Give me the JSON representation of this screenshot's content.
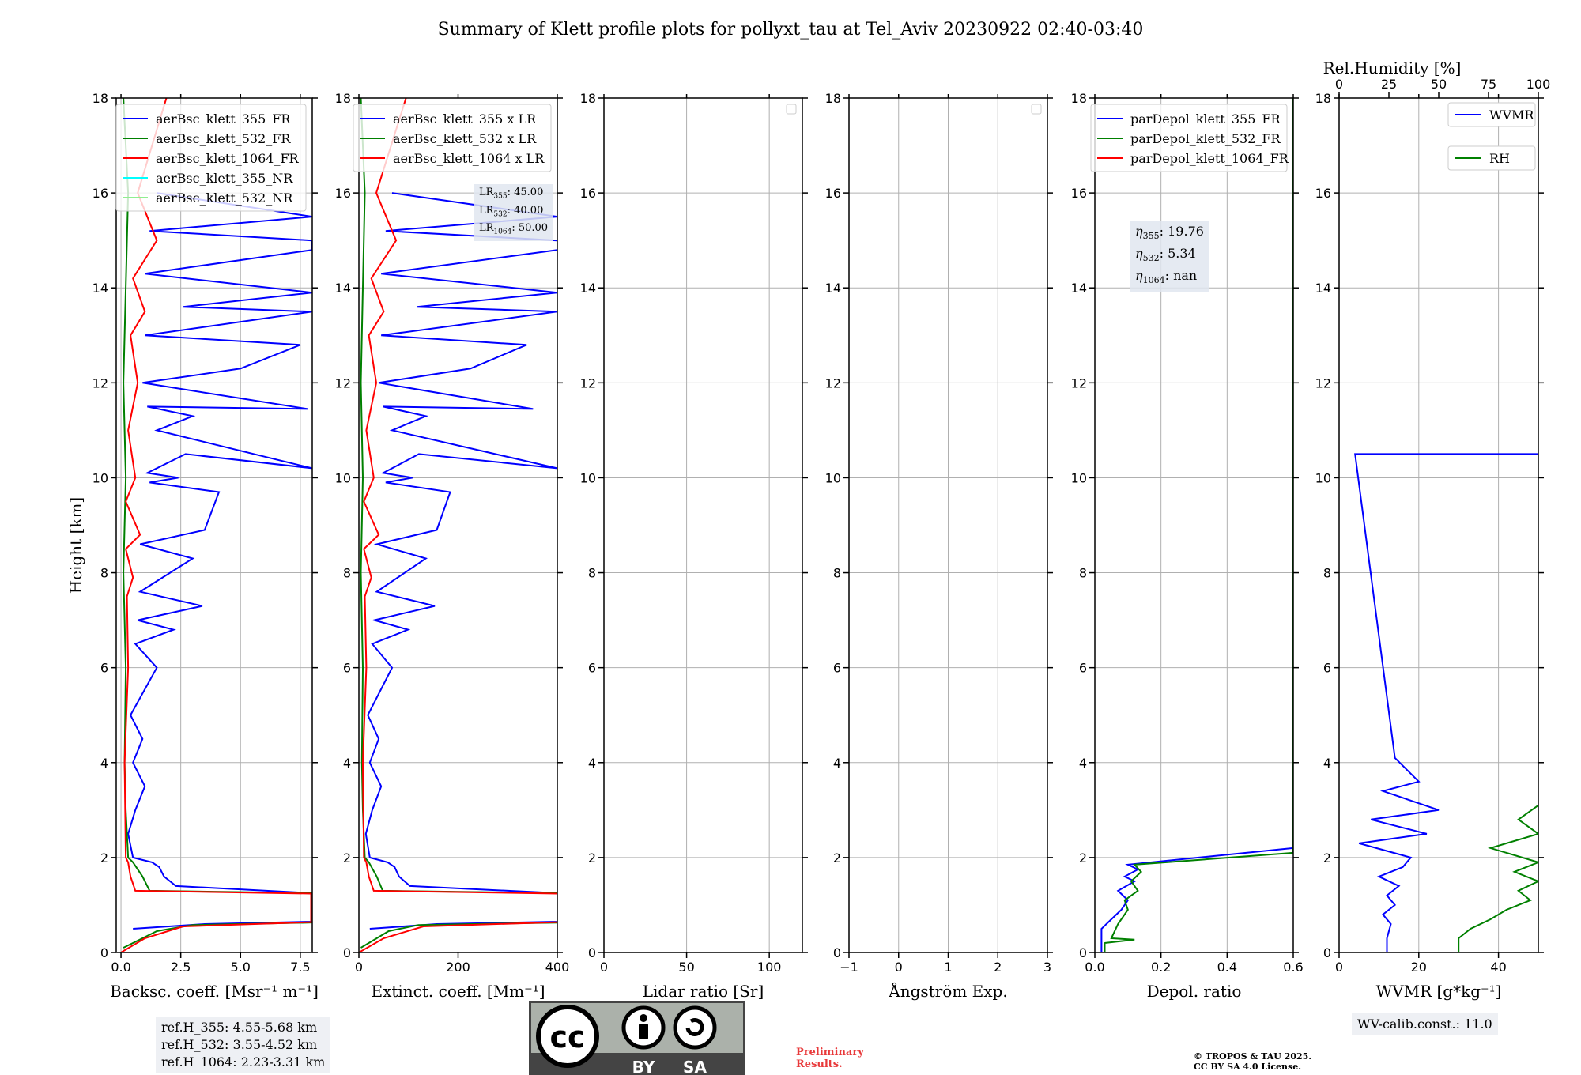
{
  "title": "Summary of Klett profile plots for pollyxt_tau at Tel_Aviv 20230922 02:40-03:40",
  "colors": {
    "c355": "#0000ff",
    "c532": "#008000",
    "c1064": "#ff0000",
    "c355nr": "#00ffff",
    "c532nr": "#90ee90"
  },
  "chart_data": [
    {
      "type": "line",
      "panel": "backscatter",
      "xlabel": "Backsc. coeff. [Msr⁻¹ m⁻¹]",
      "ylabel": "Height [km]",
      "xlim": [
        -0.2,
        8
      ],
      "ylim": [
        0,
        18
      ],
      "xticks": [
        0,
        2.5,
        5,
        7.5
      ],
      "xtick_labels": [
        "0.0",
        "2.5",
        "5.0",
        "7.5"
      ],
      "yticks": [
        0,
        2,
        4,
        6,
        8,
        10,
        12,
        14,
        16,
        18
      ],
      "legend_placement": "top-right",
      "series": [
        {
          "name": "aerBsc_klett_355_FR",
          "color": "#0000ff",
          "x": [
            0.5,
            3.5,
            7.95,
            7.95,
            7.95,
            2.3,
            1.8,
            1.6,
            1.3,
            0.5,
            0.3,
            0.6,
            1.0,
            0.5,
            0.9,
            0.4,
            1.5,
            0.6,
            2.2,
            0.7,
            3.4,
            0.8,
            3.0,
            0.8,
            3.5,
            4.1,
            1.2,
            2.4,
            1.1,
            2.7,
            8.0,
            1.5,
            3.0,
            1.1,
            7.8,
            0.9,
            5.0,
            7.5,
            1.0,
            8.0,
            2.6,
            8.0,
            1.0,
            8.0,
            8.0,
            1.2,
            8.0,
            1.5
          ],
          "y": [
            0.5,
            0.6,
            0.65,
            1.2,
            1.25,
            1.4,
            1.6,
            1.8,
            1.9,
            2.0,
            2.5,
            3.0,
            3.5,
            4.0,
            4.5,
            5.0,
            6.0,
            6.5,
            6.8,
            7.0,
            7.3,
            7.6,
            8.3,
            8.6,
            8.9,
            9.7,
            9.9,
            10.0,
            10.1,
            10.5,
            10.2,
            11.0,
            11.3,
            11.5,
            11.45,
            12.0,
            12.3,
            12.8,
            13.0,
            13.5,
            13.6,
            13.9,
            14.3,
            14.8,
            15.0,
            15.2,
            15.5,
            16.0
          ]
        },
        {
          "name": "aerBsc_klett_532_FR",
          "color": "#008000",
          "x": [
            0.1,
            1.5,
            3.0,
            7.95,
            7.95,
            7.95,
            1.2,
            0.9,
            0.5,
            0.3,
            0.2,
            0.15,
            0.2,
            0.1,
            0.2,
            0.1,
            0.2,
            0.3,
            0.1
          ],
          "y": [
            0.1,
            0.45,
            0.58,
            0.63,
            1.22,
            1.25,
            1.3,
            1.6,
            1.9,
            2.0,
            3.0,
            4.0,
            6.0,
            8.0,
            10.0,
            12.0,
            14.0,
            16.0,
            18.0
          ]
        },
        {
          "name": "aerBsc_klett_1064_FR",
          "color": "#ff0000",
          "x": [
            0.0,
            1.0,
            2.6,
            7.95,
            7.95,
            7.95,
            0.6,
            0.4,
            0.3,
            0.2,
            0.15,
            0.3,
            0.25,
            0.5,
            0.2,
            0.8,
            0.2,
            0.6,
            0.3,
            0.7,
            0.4,
            1.0,
            0.5,
            1.5,
            0.7,
            1.9
          ],
          "y": [
            0.0,
            0.3,
            0.55,
            0.64,
            1.22,
            1.24,
            1.3,
            1.6,
            1.9,
            2.0,
            4.0,
            6.0,
            7.5,
            7.9,
            8.5,
            8.8,
            9.5,
            10.0,
            11.0,
            12.0,
            13.0,
            13.5,
            14.2,
            15.0,
            16.0,
            18.0
          ]
        },
        {
          "name": "aerBsc_klett_355_NR",
          "color": "#00ffff",
          "x": [],
          "y": []
        },
        {
          "name": "aerBsc_klett_532_NR",
          "color": "#90ee90",
          "x": [],
          "y": []
        }
      ]
    },
    {
      "type": "line",
      "panel": "extinction",
      "xlabel": "Extinct. coeff. [Mm⁻¹]",
      "xlim": [
        0,
        400
      ],
      "ylim": [
        0,
        18
      ],
      "xticks": [
        0,
        200,
        400
      ],
      "xtick_labels": [
        "0",
        "200",
        "400"
      ],
      "yticks": [
        0,
        2,
        4,
        6,
        8,
        10,
        12,
        14,
        16,
        18
      ],
      "legend_placement": "top-right",
      "annotation": {
        "LR355": "45.00",
        "LR532": "40.00",
        "LR1064": "50.00"
      },
      "series": [
        {
          "name": "aerBsc_klett_355 x LR",
          "color": "#0000ff",
          "x": [
            22,
            157,
            400,
            400,
            400,
            103,
            81,
            72,
            58,
            22,
            14,
            27,
            45,
            22,
            40,
            18,
            67,
            27,
            99,
            31,
            153,
            36,
            135,
            36,
            157,
            184,
            54,
            108,
            49,
            121,
            400,
            67,
            135,
            49,
            351,
            40,
            225,
            338,
            45,
            400,
            117,
            400,
            45,
            400,
            400,
            54,
            400,
            67
          ],
          "y": [
            0.5,
            0.6,
            0.65,
            1.2,
            1.25,
            1.4,
            1.6,
            1.8,
            1.9,
            2.0,
            2.5,
            3.0,
            3.5,
            4.0,
            4.5,
            5.0,
            6.0,
            6.5,
            6.8,
            7.0,
            7.3,
            7.6,
            8.3,
            8.6,
            8.9,
            9.7,
            9.9,
            10.0,
            10.1,
            10.5,
            10.2,
            11.0,
            11.3,
            11.5,
            11.45,
            12.0,
            12.3,
            12.8,
            13.0,
            13.5,
            13.6,
            13.9,
            14.3,
            14.8,
            15.0,
            15.2,
            15.5,
            16.0
          ]
        },
        {
          "name": "aerBsc_klett_532 x LR",
          "color": "#008000",
          "x": [
            4,
            60,
            120,
            400,
            400,
            400,
            48,
            36,
            20,
            12,
            8,
            6,
            8,
            4,
            8,
            4,
            8,
            12,
            4
          ],
          "y": [
            0.1,
            0.45,
            0.58,
            0.63,
            1.22,
            1.25,
            1.3,
            1.6,
            1.9,
            2.0,
            3.0,
            4.0,
            6.0,
            8.0,
            10.0,
            12.0,
            14.0,
            16.0,
            18.0
          ]
        },
        {
          "name": "aerBsc_klett_1064 x LR",
          "color": "#ff0000",
          "x": [
            0,
            50,
            130,
            400,
            400,
            400,
            30,
            20,
            15,
            10,
            8,
            15,
            12,
            25,
            10,
            40,
            10,
            30,
            15,
            35,
            20,
            50,
            25,
            75,
            35,
            95
          ],
          "y": [
            0.0,
            0.3,
            0.55,
            0.64,
            1.22,
            1.24,
            1.3,
            1.6,
            1.9,
            2.0,
            4.0,
            6.0,
            7.5,
            7.9,
            8.5,
            8.8,
            9.5,
            10.0,
            11.0,
            12.0,
            13.0,
            13.5,
            14.2,
            15.0,
            16.0,
            18.0
          ]
        }
      ]
    },
    {
      "type": "line",
      "panel": "lidar-ratio",
      "xlabel": "Lidar ratio [Sr]",
      "xlim": [
        0,
        120
      ],
      "ylim": [
        0,
        18
      ],
      "xticks": [
        0,
        50,
        100
      ],
      "xtick_labels": [
        "0",
        "50",
        "100"
      ],
      "yticks": [
        0,
        2,
        4,
        6,
        8,
        10,
        12,
        14,
        16,
        18
      ],
      "legend_placement": "top-right",
      "series": []
    },
    {
      "type": "line",
      "panel": "angstrom",
      "xlabel": "Ångström Exp.",
      "xlim": [
        -1,
        3
      ],
      "ylim": [
        0,
        18
      ],
      "xticks": [
        -1,
        0,
        1,
        2,
        3
      ],
      "xtick_labels": [
        "−1",
        "0",
        "1",
        "2",
        "3"
      ],
      "yticks": [
        0,
        2,
        4,
        6,
        8,
        10,
        12,
        14,
        16,
        18
      ],
      "legend_placement": "top-right",
      "series": []
    },
    {
      "type": "line",
      "panel": "depol",
      "xlabel": "Depol. ratio",
      "xlim": [
        0,
        0.6
      ],
      "ylim": [
        0,
        18
      ],
      "xticks": [
        0,
        0.2,
        0.4,
        0.6
      ],
      "xtick_labels": [
        "0.0",
        "0.2",
        "0.4",
        "0.6"
      ],
      "yticks": [
        0,
        2,
        4,
        6,
        8,
        10,
        12,
        14,
        16,
        18
      ],
      "legend_placement": "top-right",
      "annotation": {
        "eta355": "19.76",
        "eta532": "5.34",
        "eta1064": "nan"
      },
      "series": [
        {
          "name": "parDepol_klett_355_FR",
          "color": "#0000ff",
          "x": [
            0.02,
            0.02,
            0.05,
            0.08,
            0.1,
            0.07,
            0.12,
            0.09,
            0.13,
            0.1,
            0.6,
            0.6
          ],
          "y": [
            0.0,
            0.5,
            0.7,
            0.9,
            1.1,
            1.3,
            1.5,
            1.6,
            1.75,
            1.85,
            2.2,
            18.0
          ]
        },
        {
          "name": "parDepol_klett_532_FR",
          "color": "#008000",
          "x": [
            0.03,
            0.03,
            0.12,
            0.05,
            0.07,
            0.1,
            0.09,
            0.13,
            0.11,
            0.14,
            0.12,
            0.6,
            0.6
          ],
          "y": [
            0.0,
            0.2,
            0.27,
            0.3,
            0.6,
            0.9,
            1.1,
            1.3,
            1.5,
            1.7,
            1.85,
            2.1,
            18.0
          ]
        },
        {
          "name": "parDepol_klett_1064_FR",
          "color": "#ff0000",
          "x": [],
          "y": []
        }
      ]
    },
    {
      "type": "line",
      "panel": "wvmr",
      "xlabel": "WVMR [g*kg⁻¹]",
      "xlim": [
        0,
        50
      ],
      "ylim": [
        0,
        18
      ],
      "xticks": [
        0,
        20,
        40
      ],
      "xtick_labels": [
        "0",
        "20",
        "40"
      ],
      "yticks": [
        0,
        2,
        4,
        6,
        8,
        10,
        12,
        14,
        16,
        18
      ],
      "x2label": "Rel.Humidity [%]",
      "x2lim": [
        0,
        100
      ],
      "x2ticks": [
        0,
        25,
        50,
        75,
        100
      ],
      "x2tick_labels": [
        "0",
        "25",
        "50",
        "75",
        "100"
      ],
      "legend_placement": "top-right",
      "series": [
        {
          "name": "WVMR",
          "color": "#0000ff",
          "x": [
            12,
            12,
            13,
            11,
            14,
            12,
            15,
            10,
            16,
            18,
            5,
            22,
            8,
            25,
            11,
            20,
            14,
            4,
            50
          ],
          "y": [
            0.0,
            0.3,
            0.6,
            0.8,
            1.0,
            1.2,
            1.4,
            1.6,
            1.8,
            2.0,
            2.3,
            2.5,
            2.8,
            3.0,
            3.4,
            3.6,
            4.1,
            10.5,
            10.5
          ]
        },
        {
          "name": "RH",
          "color": "#008000",
          "x": [
            30,
            30,
            33,
            38,
            42,
            48,
            45,
            50,
            44,
            50,
            38,
            50,
            45,
            50,
            50
          ],
          "y": [
            0.0,
            0.3,
            0.5,
            0.7,
            0.9,
            1.1,
            1.3,
            1.5,
            1.7,
            1.9,
            2.2,
            2.5,
            2.8,
            3.1,
            3.4
          ]
        }
      ]
    }
  ],
  "labels": {
    "eta355": "η",
    "lr": "LR"
  },
  "refbox": [
    "ref.H_355: 4.55-5.68 km",
    "ref.H_532: 3.55-4.52 km",
    "ref.H_1064: 2.23-3.31 km"
  ],
  "wvcalib": "WV-calib.const.: 11.0",
  "preliminary": [
    "Preliminary",
    "Results."
  ],
  "copyright": [
    "© TROPOS & TAU 2025.",
    "CC BY SA 4.0 License."
  ],
  "license_badge": {
    "cc": "cc",
    "by": "BY",
    "sa": "SA"
  }
}
